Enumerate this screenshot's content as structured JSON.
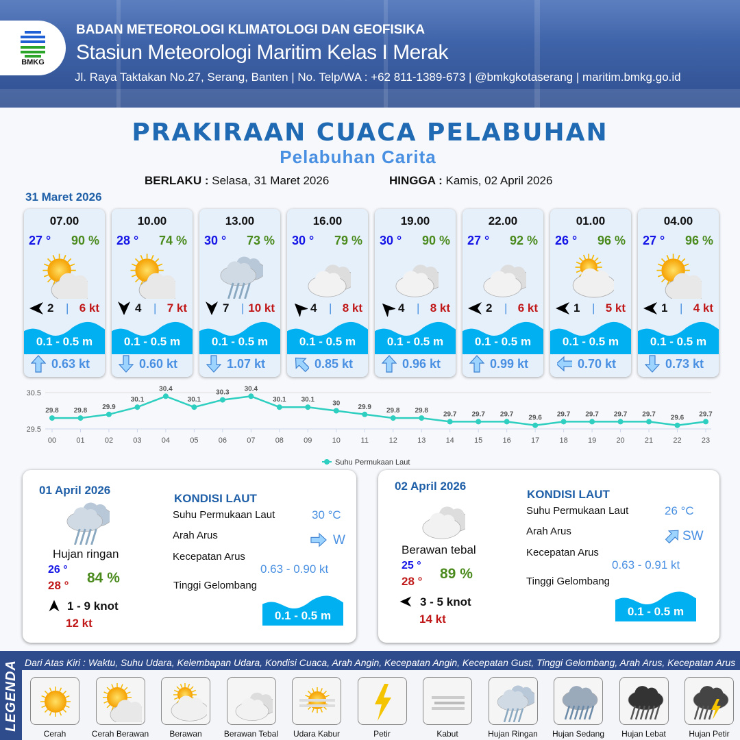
{
  "header": {
    "org": "BADAN METEOROLOGI KLIMATOLOGI DAN GEOFISIKA",
    "station": "Stasiun Meteorologi Maritim Kelas I Merak",
    "contact": "Jl. Raya Taktakan No.27, Serang, Banten | No. Telp/WA : +62 811-1389-673 | @bmkgkotaserang | maritim.bmkg.go.id",
    "logo_text": "BMKG"
  },
  "title": "PRAKIRAAN CUACA PELABUHAN",
  "subtitle": "Pelabuhan Carita",
  "validity": {
    "from_label": "BERLAKU :",
    "from": "Selasa, 31 Maret 2026",
    "to_label": "HINGGA :",
    "to": "Kamis, 02 April 2026"
  },
  "day1_date": "31 Maret 2026",
  "hourly": [
    {
      "time": "07.00",
      "temp": "27 °",
      "rh": "90 %",
      "cond": "cerah-berawan",
      "wind_dir": "E",
      "wind": "2",
      "gust": "6 kt",
      "wave": "0.1 - 0.5 m",
      "cur_dir": "S",
      "current": "0.63 kt"
    },
    {
      "time": "10.00",
      "temp": "28 °",
      "rh": "74 %",
      "cond": "cerah-berawan",
      "wind_dir": "N",
      "wind": "4",
      "gust": "7 kt",
      "wave": "0.1 - 0.5 m",
      "cur_dir": "N",
      "current": "0.60 kt"
    },
    {
      "time": "13.00",
      "temp": "30 °",
      "rh": "73 %",
      "cond": "hujan-ringan",
      "wind_dir": "N",
      "wind": "7",
      "gust": "10 kt",
      "wave": "0.1 - 0.5 m",
      "cur_dir": "N",
      "current": "1.07 kt"
    },
    {
      "time": "16.00",
      "temp": "30 °",
      "rh": "79 %",
      "cond": "berawan-tebal",
      "wind_dir": "SE",
      "wind": "4",
      "gust": "8 kt",
      "wave": "0.1 - 0.5 m",
      "cur_dir": "SE",
      "current": "0.85 kt"
    },
    {
      "time": "19.00",
      "temp": "30 °",
      "rh": "90 %",
      "cond": "berawan-tebal",
      "wind_dir": "SE",
      "wind": "4",
      "gust": "8 kt",
      "wave": "0.1 - 0.5 m",
      "cur_dir": "S",
      "current": "0.96 kt"
    },
    {
      "time": "22.00",
      "temp": "27 °",
      "rh": "92 %",
      "cond": "berawan-tebal",
      "wind_dir": "E",
      "wind": "2",
      "gust": "6 kt",
      "wave": "0.1 - 0.5 m",
      "cur_dir": "S",
      "current": "0.99 kt"
    },
    {
      "time": "01.00",
      "temp": "26 °",
      "rh": "96 %",
      "cond": "berawan",
      "wind_dir": "E",
      "wind": "1",
      "gust": "5 kt",
      "wave": "0.1 - 0.5 m",
      "cur_dir": "E",
      "current": "0.70 kt"
    },
    {
      "time": "04.00",
      "temp": "27 °",
      "rh": "96 %",
      "cond": "cerah-berawan",
      "wind_dir": "E",
      "wind": "1",
      "gust": "4 kt",
      "wave": "0.1 - 0.5 m",
      "cur_dir": "N",
      "current": "0.73 kt"
    }
  ],
  "chart_data": {
    "type": "line",
    "categories": [
      "00",
      "01",
      "02",
      "03",
      "04",
      "05",
      "06",
      "07",
      "08",
      "09",
      "10",
      "11",
      "12",
      "13",
      "14",
      "15",
      "16",
      "17",
      "18",
      "19",
      "20",
      "21",
      "22",
      "23"
    ],
    "series": [
      {
        "name": "Suhu Permukaan Laut",
        "values": [
          29.8,
          29.8,
          29.9,
          30.1,
          30.4,
          30.1,
          30.3,
          30.4,
          30.1,
          30.1,
          30.0,
          29.9,
          29.8,
          29.8,
          29.7,
          29.7,
          29.7,
          29.6,
          29.7,
          29.7,
          29.7,
          29.7,
          29.6,
          29.7
        ]
      }
    ],
    "yticks": [
      "30.5",
      "29.5"
    ],
    "ylim": [
      29.5,
      30.5
    ],
    "legend": "bottom",
    "color": "#2ecfc0",
    "grid": true
  },
  "days": [
    {
      "date": "01 April 2026",
      "cond": "hujan-ringan",
      "cond_label": "Hujan ringan",
      "tmin": "26 °",
      "tmax": "28 °",
      "rh": "84 %",
      "wind_dir": "S",
      "wind": "1 - 9 knot",
      "gust": "12 kt",
      "sea_title": "KONDISI LAUT",
      "sst_label": "Suhu Permukaan Laut",
      "sst": "30 °C",
      "cur_dir_label": "Arah Arus",
      "cur_dir": "W",
      "cur_speed_label": "Kecepatan Arus",
      "cur_speed": "0.63 - 0.90 kt",
      "wave_label": "Tinggi Gelombang",
      "wave": "0.1 - 0.5 m"
    },
    {
      "date": "02 April 2026",
      "cond": "berawan-tebal",
      "cond_label": "Berawan tebal",
      "tmin": "25 °",
      "tmax": "28 °",
      "rh": "89 %",
      "wind_dir": "E",
      "wind": "3 - 5 knot",
      "gust": "14 kt",
      "sea_title": "KONDISI LAUT",
      "sst_label": "Suhu Permukaan Laut",
      "sst": "26 °C",
      "cur_dir_label": "Arah Arus",
      "cur_dir": "SW",
      "cur_speed_label": "Kecepatan Arus",
      "cur_speed": "0.63 - 0.91 kt",
      "wave_label": "Tinggi Gelombang",
      "wave": "0.1 - 0.5 m"
    }
  ],
  "legend": {
    "title": "LEGENDA",
    "description": "Dari Atas Kiri : Waktu, Suhu Udara, Kelembapan Udara, Kondisi Cuaca, Arah Angin, Kecepatan Angin, Kecepatan Gust, Tinggi Gelombang, Arah Arus, Kecepatan Arus",
    "items": [
      {
        "icon": "cerah",
        "label": "Cerah"
      },
      {
        "icon": "cerah-berawan",
        "label": "Cerah Berawan"
      },
      {
        "icon": "berawan",
        "label": "Berawan"
      },
      {
        "icon": "berawan-tebal",
        "label": "Berawan Tebal"
      },
      {
        "icon": "udara-kabur",
        "label": "Udara Kabur"
      },
      {
        "icon": "petir",
        "label": "Petir"
      },
      {
        "icon": "kabut",
        "label": "Kabut"
      },
      {
        "icon": "hujan-ringan",
        "label": "Hujan Ringan"
      },
      {
        "icon": "hujan-sedang",
        "label": "Hujan Sedang"
      },
      {
        "icon": "hujan-lebat",
        "label": "Hujan Lebat"
      },
      {
        "icon": "hujan-petir",
        "label": "Hujan Petir"
      }
    ]
  },
  "colors": {
    "header_bg": "#3f63a8",
    "title": "#1f6ab3",
    "temp": "#1414e6",
    "humidity": "#4a8a1c",
    "gust": "#c01818",
    "wave": "#00b0f0",
    "current": "#4a90e2"
  }
}
